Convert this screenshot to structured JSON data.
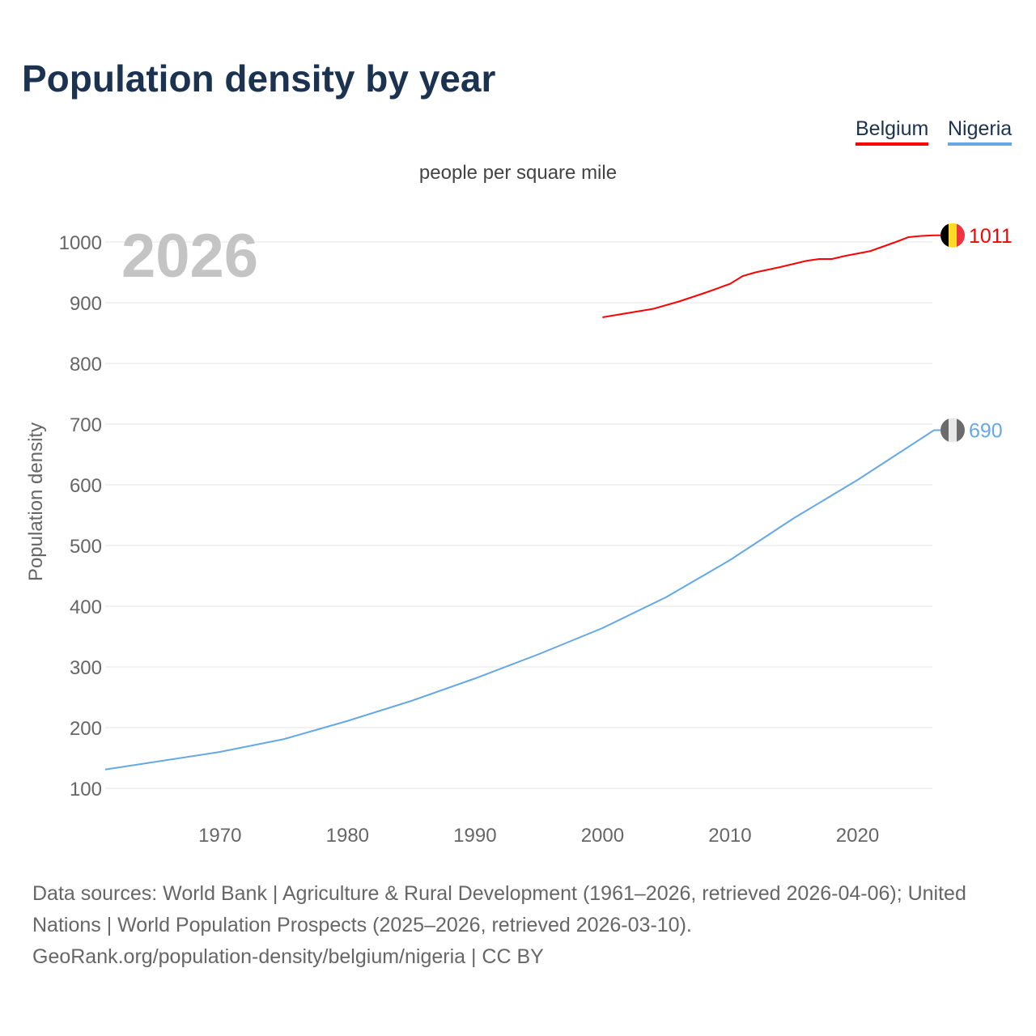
{
  "title": "Population density by year",
  "chart_data": {
    "type": "line",
    "title": "Population density by year",
    "subtitle": "people per square mile",
    "ylabel": "Population density",
    "xlabel": "",
    "year_label": "2026",
    "xlim": [
      1961,
      2026
    ],
    "ylim": [
      100,
      1000
    ],
    "xticks": [
      "1970",
      "1980",
      "1990",
      "2000",
      "2010",
      "2020"
    ],
    "yticks": [
      "100",
      "200",
      "300",
      "400",
      "500",
      "600",
      "700",
      "800",
      "900",
      "1000"
    ],
    "legend_position": "top-right",
    "series": [
      {
        "name": "Belgium",
        "color": "#ff0000",
        "end_label": "1011",
        "x": [
          2000,
          2002,
          2004,
          2006,
          2008,
          2010,
          2011,
          2012,
          2014,
          2016,
          2017,
          2018,
          2019,
          2021,
          2023,
          2024,
          2025,
          2026
        ],
        "y": [
          876,
          883,
          890,
          902,
          916,
          931,
          944,
          950,
          959,
          969,
          972,
          972,
          977,
          985,
          1000,
          1008,
          1010,
          1011
        ]
      },
      {
        "name": "Nigeria",
        "color": "#64a8e6",
        "end_label": "690",
        "x": [
          1961,
          1970,
          1975,
          1980,
          1985,
          1990,
          1995,
          2000,
          2005,
          2010,
          2015,
          2020,
          2026
        ],
        "y": [
          131,
          160,
          181,
          211,
          244,
          281,
          321,
          364,
          415,
          476,
          545,
          608,
          690
        ]
      }
    ]
  },
  "footer": {
    "line1": "Data sources: World Bank | Agriculture & Rural Development (1961–2026, retrieved 2026-04-06); United Nations | World Population Prospects (2025–2026, retrieved 2026-03-10).",
    "line2": "GeoRank.org/population-density/belgium/nigeria | CC BY"
  }
}
